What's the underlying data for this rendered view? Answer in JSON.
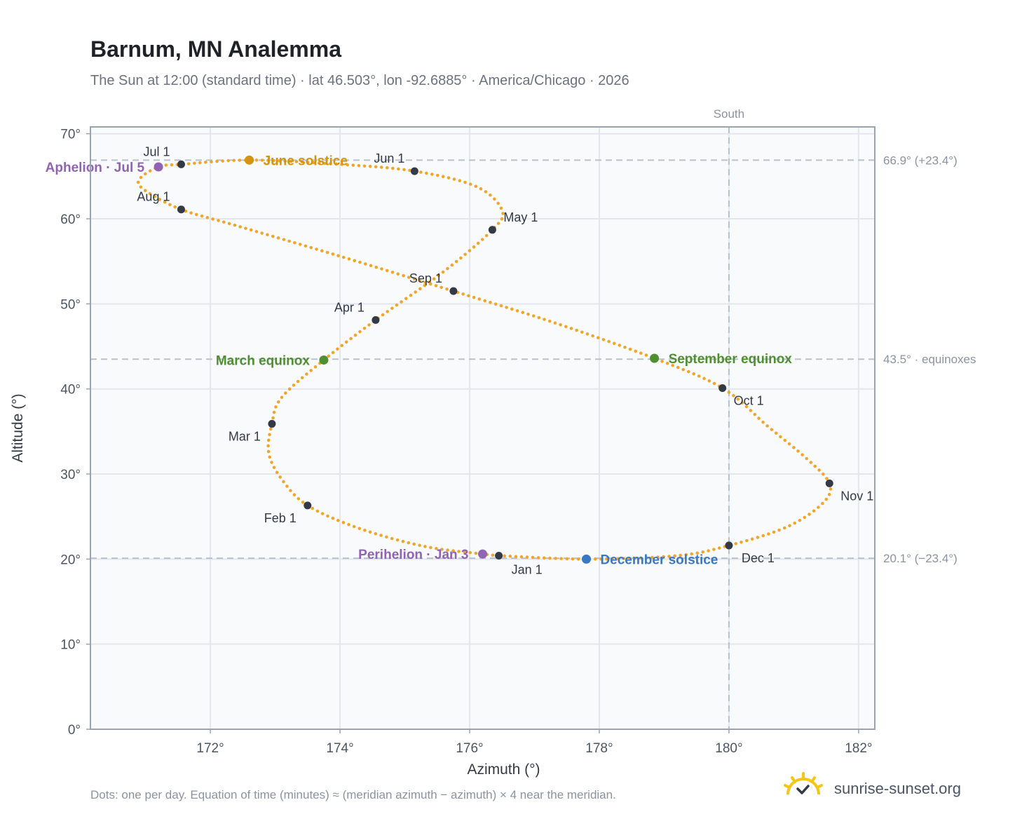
{
  "header": {
    "title": "Barnum, MN Analemma",
    "subtitle": "The Sun at 12:00 (standard time) · lat 46.503°, lon -92.6885° · America/Chicago · 2026"
  },
  "footer": {
    "note": "Dots: one per day. Equation of time (minutes) ≈ (meridian azimuth − azimuth) × 4 near the meridian.",
    "brand": "sunrise-sunset.org"
  },
  "colors": {
    "curve": "#f2a52b",
    "month_dot": "#333a45",
    "solstice_june": "#d4940f",
    "solstice_december": "#3a78c2",
    "equinox": "#4f8f2f",
    "apsis": "#9064b3",
    "grid": "#e3e7ec",
    "plot_bg": "#f8fafc",
    "ref_line": "#b8c2cf"
  },
  "chart_data": {
    "type": "scatter",
    "xlabel": "Azimuth (°)",
    "ylabel": "Altitude (°)",
    "xlim": [
      170.15,
      182.25
    ],
    "ylim": [
      0,
      70.8
    ],
    "x_ticks": [
      172,
      174,
      176,
      178,
      180,
      182
    ],
    "x_tick_labels": [
      "172°",
      "174°",
      "176°",
      "178°",
      "180°",
      "182°"
    ],
    "y_ticks": [
      0,
      10,
      20,
      30,
      40,
      50,
      60,
      70
    ],
    "y_tick_labels": [
      "0°",
      "10°",
      "20°",
      "30°",
      "40°",
      "50°",
      "60°",
      "70°"
    ],
    "grid": true,
    "meridian": {
      "x": 180,
      "label": "South"
    },
    "reference_lines": [
      {
        "y": 66.9,
        "label": "66.9° (+23.4°)"
      },
      {
        "y": 43.5,
        "label": "43.5° · equinoxes"
      },
      {
        "y": 20.1,
        "label": "20.1° (−23.4°)"
      }
    ],
    "month_markers": [
      {
        "label": "Jan 1",
        "x": 176.45,
        "y": 20.4
      },
      {
        "label": "Feb 1",
        "x": 173.5,
        "y": 26.3
      },
      {
        "label": "Mar 1",
        "x": 172.95,
        "y": 35.9
      },
      {
        "label": "Apr 1",
        "x": 174.55,
        "y": 48.1
      },
      {
        "label": "May 1",
        "x": 176.35,
        "y": 58.7
      },
      {
        "label": "Jun 1",
        "x": 175.15,
        "y": 65.6
      },
      {
        "label": "Jul 1",
        "x": 171.55,
        "y": 66.4
      },
      {
        "label": "Aug 1",
        "x": 171.55,
        "y": 61.1
      },
      {
        "label": "Sep 1",
        "x": 175.75,
        "y": 51.5
      },
      {
        "label": "Oct 1",
        "x": 179.9,
        "y": 40.1
      },
      {
        "label": "Nov 1",
        "x": 181.55,
        "y": 28.9
      },
      {
        "label": "Dec 1",
        "x": 180.0,
        "y": 21.6
      }
    ],
    "events": [
      {
        "label": "June solstice",
        "x": 172.6,
        "y": 66.9,
        "kind": "solstice_june"
      },
      {
        "label": "December solstice",
        "x": 177.8,
        "y": 20.0,
        "kind": "solstice_december"
      },
      {
        "label": "March equinox",
        "x": 173.75,
        "y": 43.4,
        "kind": "equinox"
      },
      {
        "label": "September equinox",
        "x": 178.85,
        "y": 43.6,
        "kind": "equinox"
      },
      {
        "label": "Aphelion · Jul 5",
        "x": 171.2,
        "y": 66.1,
        "kind": "apsis"
      },
      {
        "label": "Perihelion · Jan 3",
        "x": 176.2,
        "y": 20.6,
        "kind": "apsis"
      }
    ],
    "analemma_path": [
      [
        176.45,
        20.4
      ],
      [
        177.8,
        20.0
      ],
      [
        179.2,
        20.4
      ],
      [
        180.0,
        21.6
      ],
      [
        180.9,
        23.8
      ],
      [
        181.45,
        26.6
      ],
      [
        181.55,
        28.9
      ],
      [
        181.2,
        31.8
      ],
      [
        180.6,
        35.6
      ],
      [
        179.9,
        40.1
      ],
      [
        178.85,
        43.6
      ],
      [
        177.3,
        47.8
      ],
      [
        175.75,
        51.5
      ],
      [
        174.0,
        55.6
      ],
      [
        172.4,
        59.2
      ],
      [
        171.55,
        61.1
      ],
      [
        171.0,
        63.3
      ],
      [
        170.9,
        64.6
      ],
      [
        171.2,
        66.1
      ],
      [
        171.55,
        66.4
      ],
      [
        172.6,
        66.9
      ],
      [
        174.0,
        66.4
      ],
      [
        175.15,
        65.6
      ],
      [
        176.1,
        63.8
      ],
      [
        176.5,
        61.0
      ],
      [
        176.35,
        58.7
      ],
      [
        175.6,
        53.8
      ],
      [
        174.55,
        48.1
      ],
      [
        173.75,
        43.4
      ],
      [
        173.1,
        39.0
      ],
      [
        172.95,
        35.9
      ],
      [
        172.9,
        32.5
      ],
      [
        173.1,
        29.4
      ],
      [
        173.5,
        26.3
      ],
      [
        174.3,
        23.6
      ],
      [
        175.3,
        21.5
      ],
      [
        176.2,
        20.6
      ],
      [
        176.45,
        20.4
      ]
    ]
  }
}
